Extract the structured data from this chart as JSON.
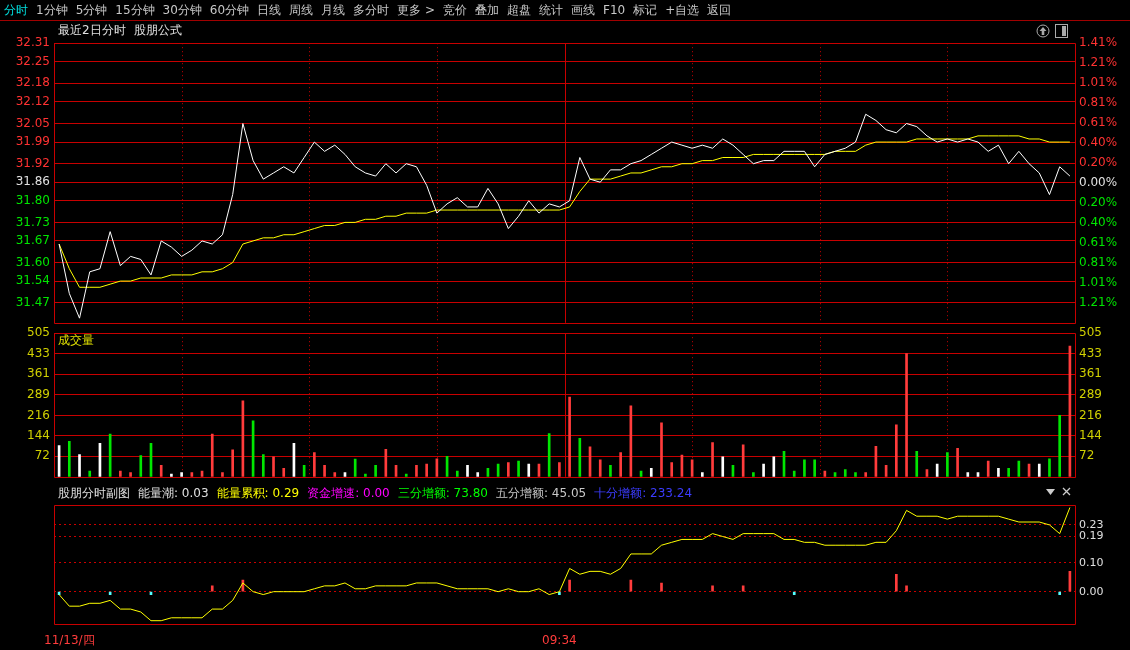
{
  "chart_data": [
    {
      "type": "line",
      "title": "最近2日分时",
      "subtitle": "股朋公式",
      "annotations": [
        "分时",
        "1分钟",
        "5分钟",
        "15分钟",
        "30分钟",
        "60分钟",
        "日线",
        "周线",
        "月线",
        "多分时",
        "更多 >",
        "竞价",
        "叠加",
        "超盘",
        "统计",
        "画线",
        "F10",
        "标记",
        "+自选",
        "返回"
      ],
      "categories": [
        null,
        null,
        null,
        null,
        null,
        null,
        null,
        null,
        null,
        null,
        null,
        null,
        null,
        null,
        null,
        null,
        null,
        null,
        null,
        null,
        null,
        null,
        null,
        null,
        null,
        null,
        null,
        null,
        null,
        null,
        null,
        null,
        null,
        null,
        null,
        null,
        null,
        null,
        null,
        null,
        null,
        null,
        null,
        null,
        null,
        null,
        null,
        null,
        null,
        null,
        null,
        null,
        null,
        null,
        null,
        null,
        null,
        null,
        null,
        null,
        null,
        null,
        null,
        null,
        null,
        null,
        null,
        null,
        null,
        null,
        null,
        null,
        null,
        null,
        null,
        null,
        null,
        null,
        null,
        null,
        null,
        null,
        null,
        null,
        null,
        null,
        null,
        null,
        null,
        null,
        null,
        null,
        null,
        null,
        null,
        null,
        null,
        null,
        null,
        null
      ],
      "series": [
        {
          "color": "#ffffff",
          "values": [
            31.66,
            31.5,
            31.42,
            31.57,
            31.58,
            31.7,
            31.59,
            31.62,
            31.61,
            31.56,
            31.67,
            31.65,
            31.62,
            31.64,
            31.67,
            31.66,
            31.69,
            31.82,
            32.05,
            31.93,
            31.87,
            31.89,
            31.91,
            31.89,
            31.94,
            31.99,
            31.96,
            31.98,
            31.95,
            31.91,
            31.89,
            31.88,
            31.92,
            31.89,
            31.92,
            31.91,
            31.85,
            31.76,
            31.79,
            31.81,
            31.78,
            31.78,
            31.84,
            31.79,
            31.71,
            31.75,
            31.8,
            31.76,
            31.79,
            31.78,
            31.8,
            31.94,
            31.87,
            31.86,
            31.9,
            31.9,
            31.92,
            31.93,
            31.95,
            31.97,
            31.99,
            31.98,
            31.97,
            31.98,
            31.97,
            32.0,
            31.98,
            31.95,
            31.92,
            31.93,
            31.93,
            31.96,
            31.96,
            31.96,
            31.91,
            31.95,
            31.96,
            31.97,
            31.99,
            32.08,
            32.06,
            32.03,
            32.02,
            32.05,
            32.04,
            32.01,
            31.99,
            32.0,
            31.99,
            32.0,
            31.99,
            31.96,
            31.98,
            31.92,
            31.96,
            31.92,
            31.89,
            31.82,
            31.91,
            31.88
          ]
        },
        {
          "color": "#ffff00",
          "values": [
            31.66,
            31.58,
            31.52,
            31.52,
            31.52,
            31.53,
            31.54,
            31.54,
            31.55,
            31.55,
            31.55,
            31.56,
            31.56,
            31.56,
            31.57,
            31.57,
            31.58,
            31.6,
            31.66,
            31.67,
            31.68,
            31.68,
            31.69,
            31.69,
            31.7,
            31.71,
            31.72,
            31.72,
            31.73,
            31.73,
            31.74,
            31.74,
            31.75,
            31.75,
            31.76,
            31.76,
            31.76,
            31.77,
            31.77,
            31.77,
            31.77,
            31.77,
            31.77,
            31.77,
            31.77,
            31.77,
            31.77,
            31.77,
            31.77,
            31.77,
            31.78,
            31.83,
            31.87,
            31.87,
            31.87,
            31.88,
            31.89,
            31.89,
            31.9,
            31.91,
            31.91,
            31.92,
            31.92,
            31.93,
            31.93,
            31.94,
            31.94,
            31.94,
            31.95,
            31.95,
            31.95,
            31.95,
            31.95,
            31.95,
            31.95,
            31.95,
            31.96,
            31.96,
            31.96,
            31.98,
            31.99,
            31.99,
            31.99,
            31.99,
            32.0,
            32.0,
            32.0,
            32.0,
            32.0,
            32.0,
            32.01,
            32.01,
            32.01,
            32.01,
            32.01,
            32.0,
            32.0,
            31.99,
            31.99,
            31.99
          ]
        }
      ],
      "ylim": [
        31.405,
        32.31
      ],
      "yticks": [
        32.31,
        32.25,
        32.18,
        32.12,
        32.05,
        31.99,
        31.92,
        31.86,
        {
          "value": 31.8,
          "label": "31.80"
        },
        31.73,
        31.67,
        {
          "value": 31.6,
          "label": "31.60"
        },
        31.54,
        31.47
      ],
      "y2lim": [
        -1.41,
        1.41
      ],
      "y2ticks": [
        {
          "value": 1.41,
          "label": "1.41%"
        },
        {
          "value": 1.209,
          "label": "1.21%"
        },
        {
          "value": 1.007,
          "label": "1.01%"
        },
        {
          "value": 0.806,
          "label": "0.81%"
        },
        {
          "value": 0.605,
          "label": "0.61%"
        },
        {
          "value": 0.4,
          "label": "0.40%"
        },
        {
          "value": 0.2,
          "label": "0.20%"
        },
        {
          "value": 0,
          "label": "0.00%"
        },
        {
          "value": -0.2,
          "label": "0.20%"
        },
        {
          "value": -0.4,
          "label": "0.40%"
        },
        {
          "value": -0.605,
          "label": "0.61%"
        },
        {
          "value": -0.806,
          "label": "0.81%"
        },
        {
          "value": -1.007,
          "label": "1.01%"
        },
        {
          "value": -1.209,
          "label": "1.21%"
        }
      ],
      "grid": true
    },
    {
      "type": "bar",
      "title": "成交量",
      "categories": [
        null,
        null,
        null,
        null,
        null,
        null,
        null,
        null,
        null,
        null,
        null,
        null,
        null,
        null,
        null,
        null,
        null,
        null,
        null,
        null,
        null,
        null,
        null,
        null,
        null,
        null,
        null,
        null,
        null,
        null,
        null,
        null,
        null,
        null,
        null,
        null,
        null,
        null,
        null,
        null,
        null,
        null,
        null,
        null,
        null,
        null,
        null,
        null,
        null,
        null,
        null,
        null,
        null,
        null,
        null,
        null,
        null,
        null,
        null,
        null,
        null,
        null,
        null,
        null,
        null,
        null,
        null,
        null,
        null,
        null,
        null,
        null,
        null,
        null,
        null,
        null,
        null,
        null,
        null,
        null,
        null,
        null,
        null,
        null,
        null,
        null,
        null,
        null,
        null,
        null,
        null,
        null,
        null,
        null,
        null,
        null,
        null,
        null,
        null,
        null
      ],
      "values": [
        110,
        125,
        78,
        20,
        118,
        150,
        20,
        15,
        75,
        118,
        40,
        10,
        15,
        15,
        20,
        150,
        15,
        95,
        267,
        197,
        78,
        70,
        30,
        118,
        40,
        85,
        40,
        15,
        15,
        62,
        10,
        40,
        97,
        40,
        10,
        40,
        45,
        63,
        72,
        20,
        40,
        15,
        30,
        45,
        50,
        55,
        45,
        45,
        152,
        50,
        280,
        135,
        105,
        60,
        40,
        85,
        250,
        20,
        30,
        190,
        50,
        76,
        60,
        15,
        120,
        70,
        40,
        112,
        15,
        45,
        70,
        90,
        20,
        60,
        60,
        20,
        15,
        25,
        15,
        15,
        107,
        40,
        183,
        433,
        90,
        25,
        45,
        85,
        100,
        15,
        15,
        55,
        30,
        30,
        55,
        45,
        45,
        63,
        216,
        460
      ],
      "colors": [
        "#ffffff",
        "#00e600",
        "#ffffff",
        "#00e600",
        "#ffffff",
        "#00e600",
        "#ff3c3c",
        "#ff3c3c",
        "#00e600",
        "#00e600",
        "#ff3c3c",
        "#ffffff",
        "#ffffff",
        "#ff3c3c",
        "#ff3c3c",
        "#ff3c3c",
        "#ff3c3c",
        "#ff3c3c",
        "#ff3c3c",
        "#00e600",
        "#00e600",
        "#ff3c3c",
        "#ff3c3c",
        "#ffffff",
        "#00e600",
        "#ff3c3c",
        "#ff3c3c",
        "#ff3c3c",
        "#ffffff",
        "#00e600",
        "#00e600",
        "#00e600",
        "#ff3c3c",
        "#ff3c3c",
        "#00e600",
        "#ff3c3c",
        "#ff3c3c",
        "#ff3c3c",
        "#00e600",
        "#00e600",
        "#ffffff",
        "#ffffff",
        "#00e600",
        "#00e600",
        "#ff3c3c",
        "#00e600",
        "#ffffff",
        "#ff3c3c",
        "#00e600",
        "#ff3c3c",
        "#ff3c3c",
        "#00e600",
        "#ff3c3c",
        "#ff3c3c",
        "#00e600",
        "#ff3c3c",
        "#ff3c3c",
        "#00e600",
        "#ffffff",
        "#ff3c3c",
        "#ff3c3c",
        "#ff3c3c",
        "#ff3c3c",
        "#ffffff",
        "#ff3c3c",
        "#ffffff",
        "#00e600",
        "#ff3c3c",
        "#00e600",
        "#ffffff",
        "#ffffff",
        "#00e600",
        "#00e600",
        "#00e600",
        "#00e600",
        "#ff3c3c",
        "#00e600",
        "#00e600",
        "#00e600",
        "#ff3c3c",
        "#ff3c3c",
        "#ff3c3c",
        "#ff3c3c",
        "#ff3c3c",
        "#00e600",
        "#ff3c3c",
        "#ffffff",
        "#00e600",
        "#ff3c3c",
        "#ffffff",
        "#ffffff",
        "#ff3c3c",
        "#ffffff",
        "#00e600",
        "#00e600",
        "#ff3c3c",
        "#ffffff",
        "#00e600",
        "#00e600",
        "#ff3c3c"
      ],
      "ylim": [
        0,
        505
      ],
      "yticks": [
        72,
        144,
        216,
        289,
        361,
        433,
        505
      ],
      "y2lim": [
        0,
        505
      ],
      "y2ticks": [
        72,
        144,
        216,
        289,
        361,
        433,
        505
      ],
      "grid": true
    },
    {
      "type": "line",
      "title": "股朋分时副图",
      "annotations": [
        "能量潮: 0.03",
        "能量累积: 0.29",
        "资金增速: 0.00",
        "三分增额: 73.80",
        "五分增额: 45.05",
        "十分增额: 233.24"
      ],
      "categories": [
        null,
        "11/13/四",
        null,
        null,
        null,
        null,
        null,
        null,
        null,
        null,
        null,
        null,
        null,
        null,
        null,
        null,
        null,
        null,
        null,
        null,
        null,
        null,
        null,
        null,
        null,
        null,
        null,
        null,
        null,
        null,
        null,
        null,
        null,
        null,
        null,
        null,
        null,
        null,
        null,
        null,
        null,
        null,
        null,
        null,
        null,
        null,
        null,
        null,
        null,
        "09:34",
        null,
        null,
        null,
        null,
        null,
        null,
        null,
        null,
        null,
        null,
        null,
        null,
        null,
        null,
        null,
        null,
        null,
        null,
        null,
        null,
        null,
        null,
        null,
        null,
        null,
        null,
        null,
        null,
        null,
        null,
        null,
        null,
        null,
        null,
        null,
        null,
        null,
        null,
        null,
        null,
        null,
        null,
        null,
        null,
        null,
        null,
        null,
        null,
        null,
        null
      ],
      "series": [
        {
          "color": "#ffff00",
          "values": [
            -0.01,
            -0.05,
            -0.05,
            -0.04,
            -0.04,
            -0.03,
            -0.06,
            -0.06,
            -0.07,
            -0.1,
            -0.1,
            -0.09,
            -0.09,
            -0.09,
            -0.09,
            -0.06,
            -0.06,
            -0.03,
            0.03,
            0.0,
            -0.01,
            0.0,
            0.0,
            0.0,
            0.0,
            0.01,
            0.02,
            0.02,
            0.03,
            0.01,
            0.01,
            0.02,
            0.02,
            0.02,
            0.02,
            0.03,
            0.03,
            0.03,
            0.02,
            0.01,
            0.01,
            0.01,
            0.01,
            0.0,
            0.01,
            0.0,
            0.0,
            0.01,
            -0.01,
            0.0,
            0.08,
            0.06,
            0.07,
            0.07,
            0.06,
            0.08,
            0.13,
            0.13,
            0.13,
            0.16,
            0.17,
            0.18,
            0.18,
            0.18,
            0.2,
            0.19,
            0.18,
            0.2,
            0.2,
            0.2,
            0.2,
            0.18,
            0.18,
            0.17,
            0.17,
            0.16,
            0.16,
            0.16,
            0.16,
            0.16,
            0.17,
            0.17,
            0.21,
            0.28,
            0.26,
            0.26,
            0.26,
            0.25,
            0.26,
            0.26,
            0.26,
            0.26,
            0.26,
            0.25,
            0.24,
            0.24,
            0.24,
            0.23,
            0.2,
            0.29
          ]
        },
        {
          "type": "bar",
          "values": [
            -0.01,
            null,
            null,
            null,
            null,
            -0.01,
            null,
            null,
            null,
            -0.01,
            null,
            null,
            null,
            null,
            null,
            0.02,
            null,
            null,
            0.04,
            null,
            null,
            null,
            null,
            null,
            null,
            null,
            null,
            null,
            null,
            null,
            null,
            null,
            null,
            null,
            null,
            null,
            null,
            null,
            null,
            null,
            null,
            null,
            null,
            null,
            null,
            null,
            null,
            null,
            null,
            -0.01,
            0.04,
            null,
            null,
            null,
            null,
            null,
            0.04,
            null,
            null,
            0.03,
            null,
            null,
            null,
            null,
            0.02,
            null,
            null,
            0.02,
            null,
            null,
            null,
            null,
            -0.01,
            null,
            null,
            null,
            null,
            null,
            null,
            null,
            null,
            null,
            0.06,
            0.02,
            null,
            null,
            null,
            null,
            null,
            null,
            null,
            null,
            null,
            null,
            null,
            null,
            null,
            null,
            -0.01,
            0.07
          ],
          "colors": [
            "#54ffff",
            null,
            null,
            null,
            null,
            "#54ffff",
            null,
            null,
            null,
            "#54ffff",
            null,
            null,
            null,
            null,
            null,
            "#ff3c3c",
            null,
            null,
            "#ff3c3c",
            null,
            null,
            null,
            null,
            null,
            null,
            null,
            null,
            null,
            null,
            null,
            null,
            null,
            null,
            null,
            null,
            null,
            null,
            null,
            null,
            null,
            null,
            null,
            null,
            null,
            null,
            null,
            null,
            null,
            null,
            "#54ffff",
            "#ff3c3c",
            null,
            null,
            null,
            null,
            null,
            "#ff3c3c",
            null,
            null,
            "#ff3c3c",
            null,
            null,
            null,
            null,
            "#ff3c3c",
            null,
            null,
            "#ff3c3c",
            null,
            null,
            null,
            null,
            "#54ffff",
            null,
            null,
            null,
            null,
            null,
            null,
            null,
            null,
            null,
            "#ff3c3c",
            "#ff3c3c",
            null,
            null,
            null,
            null,
            null,
            null,
            null,
            null,
            null,
            null,
            null,
            null,
            null,
            null,
            "#54ffff",
            "#ff3c3c"
          ]
        }
      ],
      "ylim": [
        -0.11,
        0.3
      ],
      "yticks": [
        {
          "value": 0,
          "label": "0.00"
        },
        {
          "value": 0.1,
          "label": "0.10"
        },
        0.19,
        0.23
      ],
      "grid": "y"
    }
  ]
}
